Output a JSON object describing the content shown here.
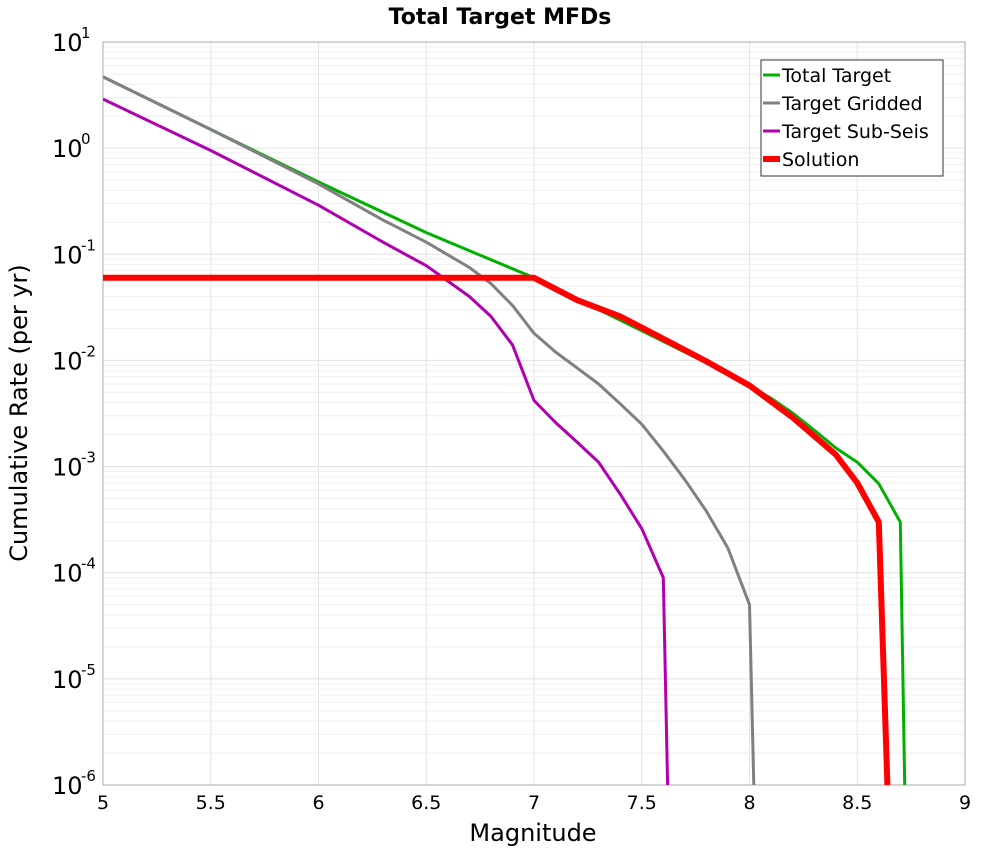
{
  "chart_data": {
    "type": "line",
    "title": "Total Target MFDs",
    "xlabel": "Magnitude",
    "ylabel": "Cumulative Rate (per yr)",
    "xlim": [
      5,
      9
    ],
    "ylim": [
      1e-06,
      10
    ],
    "yscale": "log",
    "grid": true,
    "legend_position": "top-right",
    "xticks": [
      "5",
      "5.5",
      "6",
      "6.5",
      "7",
      "7.5",
      "8",
      "8.5",
      "9"
    ],
    "yticks": [
      {
        "base": "10",
        "exp": "1",
        "value": 10
      },
      {
        "base": "10",
        "exp": "0",
        "value": 1
      },
      {
        "base": "10",
        "exp": "-1",
        "value": 0.1
      },
      {
        "base": "10",
        "exp": "-2",
        "value": 0.01
      },
      {
        "base": "10",
        "exp": "-3",
        "value": 0.001
      },
      {
        "base": "10",
        "exp": "-4",
        "value": 0.0001
      },
      {
        "base": "10",
        "exp": "-5",
        "value": 1e-05
      },
      {
        "base": "10",
        "exp": "-6",
        "value": 1e-06
      }
    ],
    "series": [
      {
        "name": "Total Target",
        "color": "#00b000",
        "width": 3,
        "x": [
          5.0,
          5.5,
          6.0,
          6.5,
          7.0,
          7.5,
          7.8,
          8.0,
          8.1,
          8.2,
          8.3,
          8.4,
          8.5,
          8.6,
          8.7,
          8.72
        ],
        "y": [
          4.7,
          1.5,
          0.48,
          0.16,
          0.06,
          0.019,
          0.0095,
          0.0058,
          0.0044,
          0.0032,
          0.0022,
          0.0015,
          0.0011,
          0.00069,
          0.0003,
          1e-06
        ]
      },
      {
        "name": "Target Gridded",
        "color": "#808080",
        "width": 3,
        "x": [
          5.0,
          5.5,
          6.0,
          6.3,
          6.5,
          6.7,
          6.8,
          6.9,
          7.0,
          7.1,
          7.2,
          7.3,
          7.4,
          7.5,
          7.6,
          7.7,
          7.8,
          7.9,
          8.0,
          8.02
        ],
        "y": [
          4.7,
          1.5,
          0.46,
          0.21,
          0.13,
          0.075,
          0.053,
          0.033,
          0.018,
          0.012,
          0.0085,
          0.006,
          0.0039,
          0.0025,
          0.0014,
          0.00075,
          0.00038,
          0.00017,
          5e-05,
          1e-06
        ]
      },
      {
        "name": "Target Sub-Seis",
        "color": "#b000b0",
        "width": 3,
        "x": [
          5.0,
          5.5,
          6.0,
          6.3,
          6.5,
          6.7,
          6.8,
          6.9,
          7.0,
          7.1,
          7.2,
          7.3,
          7.4,
          7.5,
          7.6,
          7.62
        ],
        "y": [
          2.9,
          0.95,
          0.29,
          0.13,
          0.078,
          0.04,
          0.026,
          0.014,
          0.0042,
          0.0026,
          0.0017,
          0.0011,
          0.00055,
          0.00026,
          9e-05,
          1e-06
        ]
      },
      {
        "name": "Solution",
        "color": "#ff0000",
        "width": 6,
        "x": [
          5.0,
          7.0,
          7.2,
          7.4,
          7.6,
          7.8,
          8.0,
          8.2,
          8.4,
          8.5,
          8.6,
          8.64
        ],
        "y": [
          0.06,
          0.06,
          0.037,
          0.026,
          0.016,
          0.0098,
          0.0058,
          0.0029,
          0.0013,
          0.0007,
          0.0003,
          1e-06
        ]
      }
    ]
  }
}
